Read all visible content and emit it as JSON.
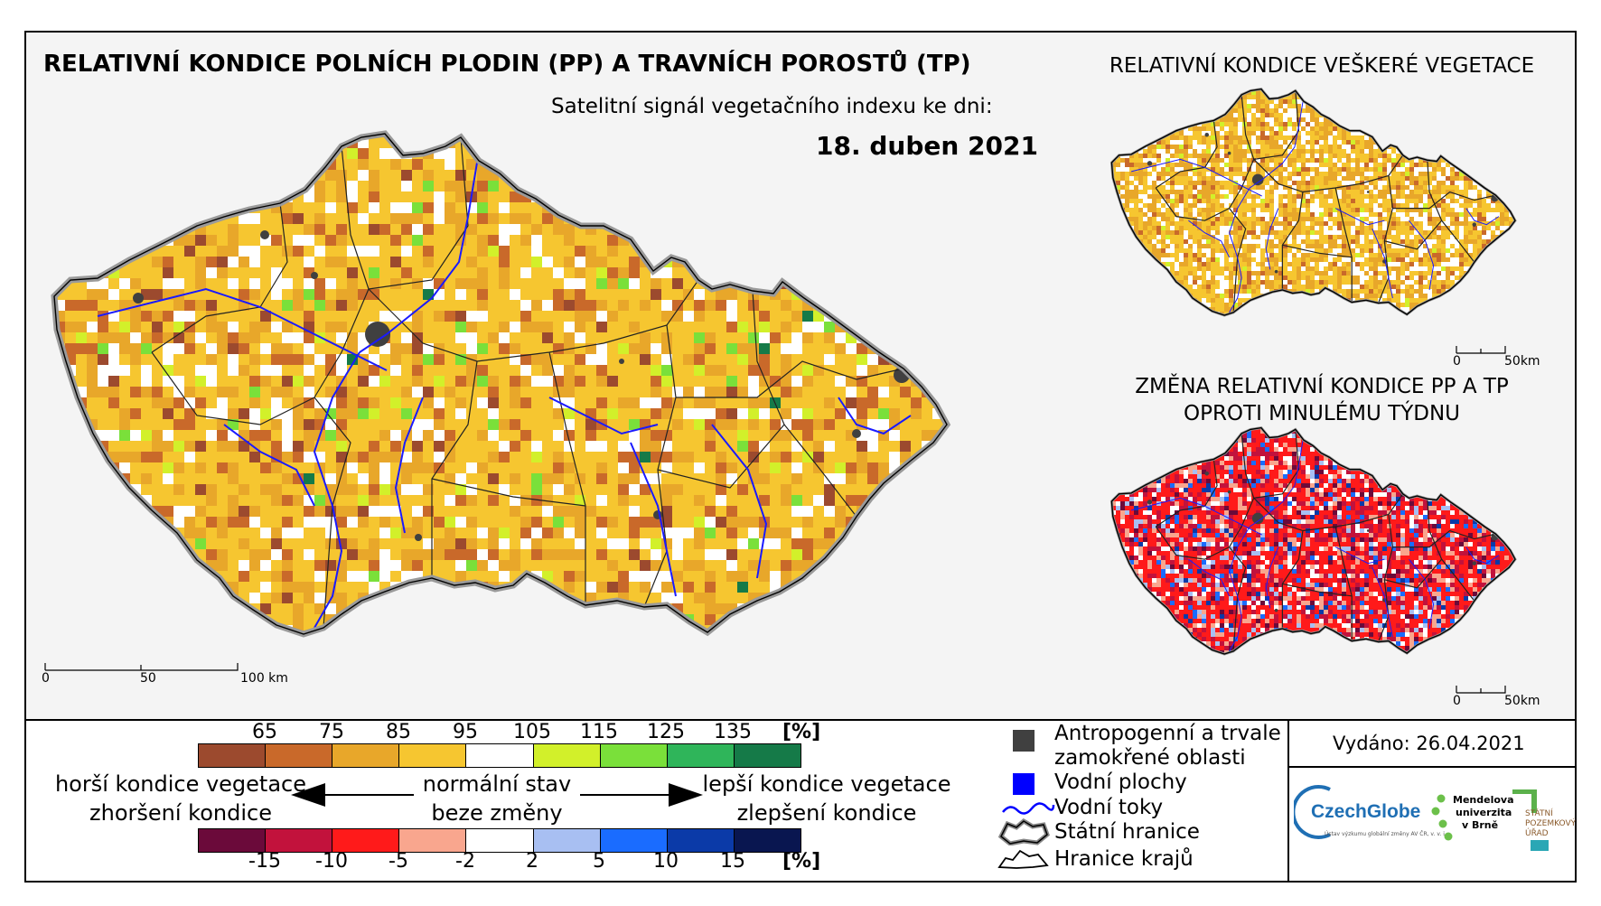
{
  "main": {
    "title": "RELATIVNÍ KONDICE POLNÍCH PLODIN (PP) A TRAVNÍCH POROSTŮ (TP)",
    "subtitle": "Satelitní signál vegetačního indexu ke dni:",
    "date": "18. duben 2021",
    "scale": {
      "zero": "0",
      "mid": "50",
      "end": "100 km"
    }
  },
  "top_right": {
    "title": "RELATIVNÍ KONDICE VEŠKERÉ VEGETACE",
    "scale": {
      "zero": "0",
      "end": "50km"
    }
  },
  "bottom_right": {
    "title_line1": "ZMĚNA RELATIVNÍ KONDICE PP A TP",
    "title_line2": "OPROTI MINULÉMU TÝDNU",
    "scale": {
      "zero": "0",
      "end": "50km"
    }
  },
  "legend": {
    "condition_unit": "[%]",
    "condition_ticks": [
      "65",
      "75",
      "85",
      "95",
      "105",
      "115",
      "125",
      "135"
    ],
    "condition_colors": [
      "#9c4a2e",
      "#c9692a",
      "#e8a72a",
      "#f6c630",
      "#ffffff",
      "#d2f02a",
      "#7ae03a",
      "#2fb55a",
      "#157a48"
    ],
    "change_unit": "[%]",
    "change_ticks": [
      "-15",
      "-10",
      "-5",
      "-2",
      "2",
      "5",
      "10",
      "15"
    ],
    "change_colors": [
      "#6b0a3a",
      "#c2123c",
      "#ff1a1a",
      "#f9a68e",
      "#ffffff",
      "#a8bff2",
      "#1a6cff",
      "#0b3aa8",
      "#091650"
    ],
    "worse_line1": "horší kondice vegetace",
    "worse_line2": "zhoršení kondice",
    "normal_line1": "normální stav",
    "normal_line2": "beze změny",
    "better_line1": "lepší kondice vegetace",
    "better_line2": "zlepšení kondice"
  },
  "key": {
    "anthropogenic_line1": "Antropogenní a trvale",
    "anthropogenic_line2": "zamokřené oblasti",
    "water_bodies": "Vodní plochy",
    "rivers": "Vodní toky",
    "state_border": "Státní hranice",
    "region_border": "Hranice krajů",
    "anthropogenic_color": "#404040",
    "water_color": "#0000ff"
  },
  "issued": "Vydáno: 26.04.2021",
  "logos": {
    "czechglobe": "CzechGlobe",
    "czechglobe_sub": "Ústav výzkumu globální změny AV ČR, v. v. i.",
    "mendelu_line1": "Mendelova",
    "mendelu_line2": "univerzita",
    "mendelu_line3": "v Brně",
    "spu_line1": "STÁTNÍ",
    "spu_line2": "POZEMKOVÝ",
    "spu_line3": "ÚŘAD"
  }
}
